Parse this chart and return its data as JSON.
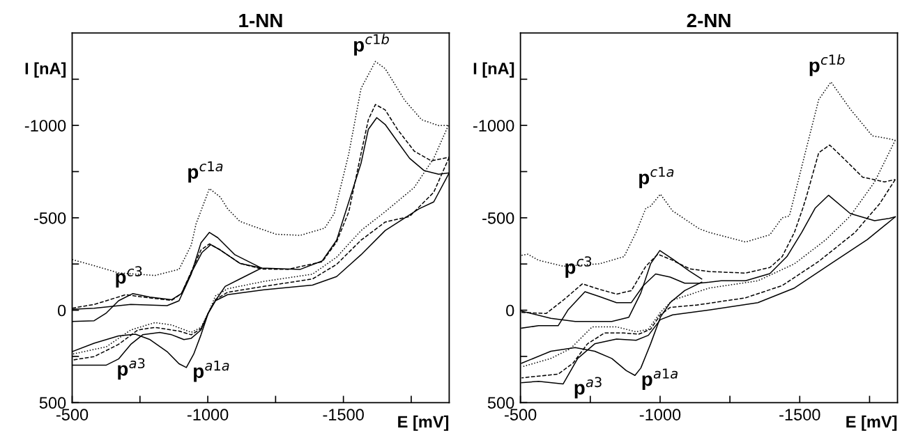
{
  "chart_data": [
    {
      "type": "line",
      "title": "1-NN",
      "xlabel": "E [mV]",
      "ylabel": "I [nA]",
      "xlim": [
        -500,
        -1890
      ],
      "ylim": [
        500,
        -1500
      ],
      "xticks": [
        -500,
        {
          "value": -750,
          "label": null
        },
        -1000,
        {
          "value": -1250,
          "label": null
        },
        -1500,
        {
          "value": -1750,
          "label": null
        }
      ],
      "yticks": [
        {
          "value": -1250,
          "label": null
        },
        -1000,
        {
          "value": -750,
          "label": null
        },
        -500,
        {
          "value": -250,
          "label": null
        },
        0,
        {
          "value": 250,
          "label": null
        },
        500
      ],
      "grid": false,
      "series": [
        {
          "color": "#000000",
          "line_style": "solid",
          "x": [
            -500,
            -581,
            -716,
            -850,
            -894,
            -939,
            -975,
            -1006,
            -1037,
            -1100,
            -1198
          ],
          "values": [
            -5,
            -11,
            -31,
            -25,
            -51,
            -195,
            -365,
            -421,
            -392,
            -300,
            -228
          ]
        },
        {
          "color": "#000000",
          "line_style": "solid",
          "x": [
            -1198,
            -1118,
            -1064,
            -1028,
            -1002,
            -975,
            -948,
            -921,
            -894,
            -850,
            -787,
            -733,
            -671,
            -581,
            -500
          ],
          "values": [
            -228,
            -169,
            -129,
            -51,
            15,
            133,
            238,
            310,
            290,
            224,
            159,
            130,
            139,
            179,
            224
          ]
        },
        {
          "color": "#000000",
          "line_style": "solid",
          "x": [
            -500,
            -581,
            -626,
            -671,
            -724,
            -787,
            -867,
            -903,
            -939,
            -979,
            -1011,
            -1046,
            -1118,
            -1198,
            -1341,
            -1422,
            -1475,
            -1565,
            -1592,
            -1623,
            -1654,
            -1699,
            -1744,
            -1797,
            -1851,
            -1890
          ],
          "values": [
            61,
            57,
            15,
            -51,
            -90,
            -71,
            -57,
            -90,
            -202,
            -313,
            -355,
            -326,
            -254,
            -228,
            -221,
            -267,
            -379,
            -795,
            -979,
            -1042,
            -1005,
            -913,
            -822,
            -756,
            -736,
            -743
          ]
        },
        {
          "color": "#000000",
          "line_style": "solid",
          "x": [
            -1890,
            -1833,
            -1779,
            -1654,
            -1565,
            -1475,
            -1386,
            -1207,
            -1073,
            -1028,
            -1002,
            -975,
            -939,
            -912,
            -867,
            -823,
            -760,
            -716,
            -671,
            -626,
            -500
          ],
          "values": [
            -743,
            -586,
            -549,
            -431,
            -300,
            -182,
            -136,
            -110,
            -84,
            -51,
            15,
            107,
            152,
            159,
            133,
            120,
            133,
            185,
            264,
            297,
            297
          ]
        },
        {
          "color": "#000000",
          "line_style": "dashed",
          "x": [
            -500,
            -581,
            -698,
            -760,
            -867,
            -903,
            -939,
            -975,
            -1006,
            -1046,
            -1118,
            -1198,
            -1296,
            -1422,
            -1475,
            -1520,
            -1565,
            -1592,
            -1618,
            -1654,
            -1699,
            -1761,
            -1824,
            -1890
          ],
          "values": [
            -11,
            -31,
            -84,
            -71,
            -53,
            -90,
            -208,
            -326,
            -359,
            -326,
            -254,
            -223,
            -221,
            -262,
            -370,
            -533,
            -848,
            -1031,
            -1113,
            -1084,
            -979,
            -861,
            -808,
            -828
          ]
        },
        {
          "color": "#000000",
          "line_style": "dashed",
          "x": [
            -1890,
            -1833,
            -1744,
            -1654,
            -1565,
            -1475,
            -1386,
            -1207,
            -1073,
            -1028,
            -1002,
            -975,
            -939,
            -894,
            -805,
            -742,
            -671,
            -581,
            -500
          ],
          "values": [
            -828,
            -638,
            -507,
            -477,
            -379,
            -248,
            -169,
            -129,
            -97,
            -57,
            15,
            100,
            133,
            113,
            93,
            107,
            185,
            251,
            270
          ]
        },
        {
          "color": "#000000",
          "line_style": "dotted",
          "x": [
            -500,
            -581,
            -671,
            -805,
            -894,
            -939,
            -957,
            -1006,
            -1046,
            -1073,
            -1118,
            -1162,
            -1252,
            -1341,
            -1431,
            -1466,
            -1520,
            -1565,
            -1618,
            -1654,
            -1726,
            -1788,
            -1851,
            -1887
          ],
          "values": [
            -274,
            -241,
            -202,
            -188,
            -221,
            -352,
            -468,
            -658,
            -612,
            -549,
            -481,
            -457,
            -411,
            -405,
            -444,
            -523,
            -848,
            -1200,
            -1346,
            -1307,
            -1136,
            -1031,
            -999,
            -1000
          ]
        },
        {
          "color": "#000000",
          "line_style": "dotted",
          "x": [
            -1887,
            -1833,
            -1761,
            -1654,
            -1565,
            -1475,
            -1386,
            -1207,
            -1073,
            -1028,
            -1006,
            -975,
            -939,
            -867,
            -805,
            -716,
            -626,
            -500
          ],
          "values": [
            -1000,
            -822,
            -664,
            -533,
            -431,
            -287,
            -195,
            -156,
            -116,
            -77,
            2,
            93,
            120,
            80,
            67,
            107,
            198,
            238
          ]
        }
      ],
      "annotations": [
        {
          "text": "p$^{c1b}$",
          "x": -1618,
          "y": -1346
        },
        {
          "text": "p$^{c1a}$",
          "x": -1006,
          "y": -658
        },
        {
          "text": "p$^{c3}$",
          "x": -724,
          "y": -90
        },
        {
          "text": "p$^{a3}$",
          "x": -626,
          "y": 297
        },
        {
          "text": "p$^{a1a}$",
          "x": -921,
          "y": 310
        }
      ]
    },
    {
      "type": "line",
      "title": "2-NN",
      "xlabel": "E [mV]",
      "ylabel": "I [nA]",
      "xlim": [
        -500,
        -1850
      ],
      "ylim": [
        500,
        -1500
      ],
      "xticks": [
        -500,
        {
          "value": -750,
          "label": null
        },
        -1000,
        {
          "value": -1250,
          "label": null
        },
        -1500,
        {
          "value": -1750,
          "label": null
        }
      ],
      "yticks": [
        {
          "value": -1250,
          "label": null
        },
        -1000,
        {
          "value": -750,
          "label": null
        },
        -500,
        {
          "value": -250,
          "label": null
        },
        0,
        {
          "value": 250,
          "label": null
        },
        500
      ],
      "grid": false,
      "series": [
        {
          "color": "#000000",
          "line_style": "solid",
          "x": [
            -504,
            -609,
            -696,
            -827,
            -888,
            -931,
            -966,
            -999,
            -1045,
            -1106,
            -1149
          ],
          "values": [
            5,
            44,
            61,
            61,
            38,
            -93,
            -251,
            -323,
            -277,
            -211,
            -169
          ]
        },
        {
          "color": "#000000",
          "line_style": "solid",
          "x": [
            -1149,
            -1088,
            -1036,
            -1001,
            -966,
            -931,
            -910,
            -879,
            -827,
            -766,
            -696,
            -609,
            -504
          ],
          "values": [
            -152,
            -106,
            -41,
            38,
            182,
            313,
            353,
            327,
            261,
            222,
            202,
            222,
            287
          ]
        },
        {
          "color": "#000000",
          "line_style": "solid",
          "x": [
            -504,
            -565,
            -635,
            -670,
            -731,
            -783,
            -844,
            -897,
            -940,
            -984,
            -1036,
            -1088,
            -1141,
            -1219,
            -1306,
            -1393,
            -1454,
            -1507,
            -1555,
            -1603,
            -1681,
            -1768,
            -1820,
            -1842
          ],
          "values": [
            97,
            84,
            84,
            -1,
            -100,
            -74,
            -41,
            -41,
            -133,
            -196,
            -179,
            -146,
            -146,
            -159,
            -159,
            -198,
            -290,
            -421,
            -552,
            -622,
            -523,
            -484,
            -497,
            -505
          ]
        },
        {
          "color": "#000000",
          "line_style": "solid",
          "x": [
            -1842,
            -1742,
            -1611,
            -1481,
            -1350,
            -1176,
            -1045,
            -1001,
            -958,
            -914,
            -844,
            -766,
            -705,
            -653,
            -565,
            -504
          ],
          "values": [
            -505,
            -382,
            -251,
            -120,
            -41,
            -1,
            25,
            51,
            136,
            163,
            156,
            182,
            261,
            399,
            385,
            392
          ]
        },
        {
          "color": "#000000",
          "line_style": "dashed",
          "x": [
            -504,
            -592,
            -653,
            -722,
            -783,
            -844,
            -897,
            -949,
            -992,
            -1045,
            -1106,
            -1176,
            -1306,
            -1393,
            -1437,
            -1481,
            -1511,
            -1524,
            -1568,
            -1607,
            -1655,
            -1725,
            -1803,
            -1842
          ],
          "values": [
            12,
            18,
            -54,
            -143,
            -113,
            -87,
            -106,
            -238,
            -303,
            -270,
            -224,
            -209,
            -201,
            -231,
            -290,
            -421,
            -552,
            -615,
            -852,
            -894,
            -825,
            -720,
            -694,
            -707
          ]
        },
        {
          "color": "#000000",
          "line_style": "dashed",
          "x": [
            -1842,
            -1786,
            -1698,
            -1568,
            -1437,
            -1306,
            -1132,
            -1036,
            -1001,
            -966,
            -923,
            -870,
            -801,
            -740,
            -688,
            -635,
            -504
          ],
          "values": [
            -707,
            -576,
            -421,
            -264,
            -133,
            -67,
            -28,
            -15,
            25,
            103,
            130,
            123,
            123,
            182,
            287,
            346,
            366
          ]
        },
        {
          "color": "#000000",
          "line_style": "dotted",
          "x": [
            -504,
            -526,
            -565,
            -653,
            -783,
            -871,
            -914,
            -949,
            -966,
            -1001,
            -1045,
            -1141,
            -1176,
            -1306,
            -1393,
            -1437,
            -1463,
            -1524,
            -1568,
            -1612,
            -1681,
            -1760,
            -1812,
            -1842
          ],
          "values": [
            -297,
            -303,
            -270,
            -238,
            -251,
            -290,
            -421,
            -552,
            -563,
            -628,
            -537,
            -440,
            -421,
            -369,
            -408,
            -500,
            -510,
            -878,
            -1140,
            -1235,
            -1088,
            -943,
            -930,
            -920
          ]
        },
        {
          "color": "#000000",
          "line_style": "dotted",
          "x": [
            -1842,
            -1768,
            -1681,
            -1594,
            -1481,
            -1350,
            -1176,
            -1045,
            -1001,
            -958,
            -914,
            -844,
            -757,
            -679,
            -609,
            -504
          ],
          "values": [
            -920,
            -694,
            -510,
            -382,
            -251,
            -159,
            -120,
            -54,
            12,
            103,
            117,
            90,
            90,
            208,
            261,
            307
          ]
        }
      ],
      "annotations": [
        {
          "text": "p$^{c1b}$",
          "x": -1612,
          "y": -1235
        },
        {
          "text": "p$^{c1a}$",
          "x": -1001,
          "y": -628
        },
        {
          "text": "p$^{c3}$",
          "x": -722,
          "y": -143
        },
        {
          "text": "p$^{a3}$",
          "x": -653,
          "y": 399
        },
        {
          "text": "p$^{a1a}$",
          "x": -910,
          "y": 353
        }
      ]
    }
  ]
}
